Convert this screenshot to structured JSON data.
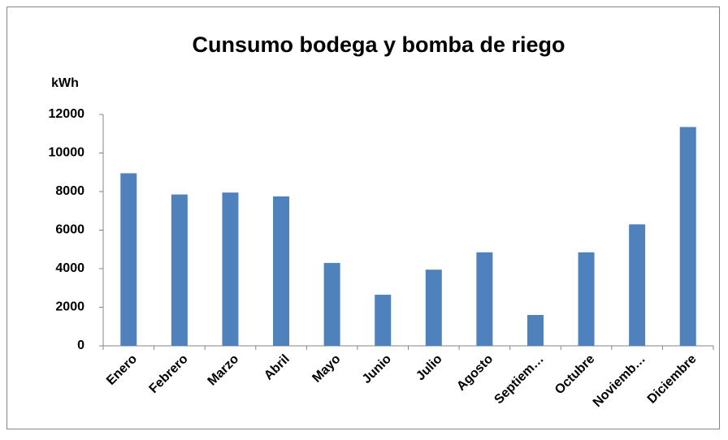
{
  "chart_data": {
    "type": "bar",
    "title": "Cunsumo bodega y bomba de riego",
    "y_label": "kWh",
    "categories": [
      "Enero",
      "Febrero",
      "Marzo",
      "Abril",
      "Mayo",
      "Junio",
      "Julio",
      "Agosto",
      "Septiem…",
      "Octubre",
      "Noviemb…",
      "Diciembre"
    ],
    "values": [
      8950,
      7850,
      7950,
      7750,
      4300,
      2650,
      3950,
      4850,
      1600,
      4850,
      6300,
      11350
    ],
    "color": "#4f81bd",
    "ylim": [
      0,
      12000
    ],
    "yticks": [
      0,
      2000,
      4000,
      6000,
      8000,
      10000,
      12000
    ],
    "grid": false
  }
}
